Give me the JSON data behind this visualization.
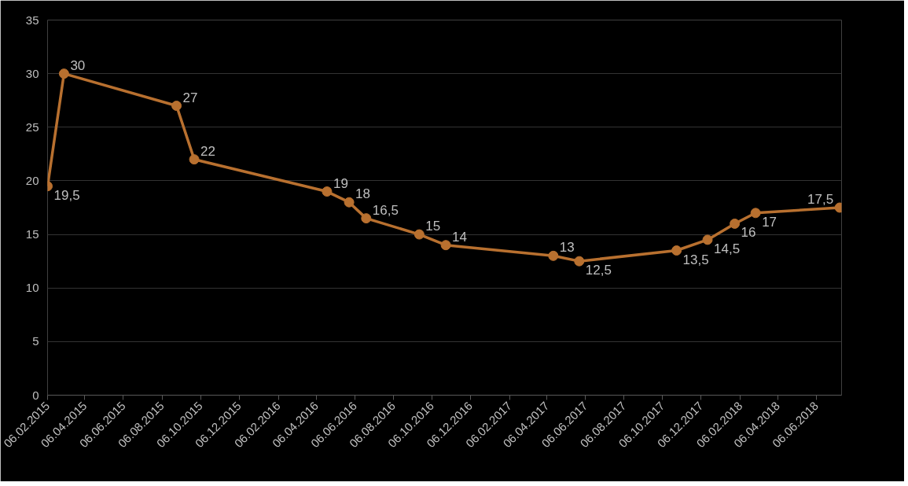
{
  "chart_data": {
    "type": "line",
    "x": [
      "2015-02-06",
      "2015-03-04",
      "2015-08-29",
      "2015-09-26",
      "2016-04-23",
      "2016-05-28",
      "2016-06-24",
      "2016-09-16",
      "2016-10-28",
      "2017-04-16",
      "2017-05-27",
      "2017-10-28",
      "2017-12-16",
      "2018-01-28",
      "2018-03-02",
      "2018-07-13"
    ],
    "series": [
      {
        "color": "#b8702f",
        "values": [
          19.5,
          30,
          27,
          22,
          19,
          18,
          16.5,
          15,
          14,
          13,
          12.5,
          13.5,
          14.5,
          16,
          17,
          17.5
        ],
        "value_labels": [
          "19,5",
          "30",
          "27",
          "22",
          "19",
          "18",
          "16,5",
          "15",
          "14",
          "13",
          "12,5",
          "13,5",
          "14,5",
          "16",
          "17",
          "17,5"
        ]
      }
    ],
    "xlim": [
      "2015-02-06",
      "2018-07-16"
    ],
    "xticks": [
      {
        "value": "2015-02-06",
        "label": "06.02.2015"
      },
      {
        "value": "2015-04-06",
        "label": "06.04.2015"
      },
      {
        "value": "2015-06-06",
        "label": "06.06.2015"
      },
      {
        "value": "2015-08-06",
        "label": "06.08.2015"
      },
      {
        "value": "2015-10-06",
        "label": "06.10.2015"
      },
      {
        "value": "2015-12-06",
        "label": "06.12.2015"
      },
      {
        "value": "2016-02-06",
        "label": "06.02.2016"
      },
      {
        "value": "2016-04-06",
        "label": "06.04.2016"
      },
      {
        "value": "2016-06-06",
        "label": "06.06.2016"
      },
      {
        "value": "2016-08-06",
        "label": "06.08.2016"
      },
      {
        "value": "2016-10-06",
        "label": "06.10.2016"
      },
      {
        "value": "2016-12-06",
        "label": "06.12.2016"
      },
      {
        "value": "2017-02-06",
        "label": "06.02.2017"
      },
      {
        "value": "2017-04-06",
        "label": "06.04.2017"
      },
      {
        "value": "2017-06-06",
        "label": "06.06.2017"
      },
      {
        "value": "2017-08-06",
        "label": "06.08.2017"
      },
      {
        "value": "2017-10-06",
        "label": "06.10.2017"
      },
      {
        "value": "2017-12-06",
        "label": "06.12.2017"
      },
      {
        "value": "2018-02-06",
        "label": "06.02.2018"
      },
      {
        "value": "2018-04-06",
        "label": "06.04.2018"
      },
      {
        "value": "2018-06-06",
        "label": "06.06.2018"
      }
    ],
    "ylim": [
      0,
      35
    ],
    "yticks": [
      0,
      5,
      10,
      15,
      20,
      25,
      30,
      35
    ],
    "grid": "y",
    "marker": "circle",
    "line_style": "solid"
  }
}
